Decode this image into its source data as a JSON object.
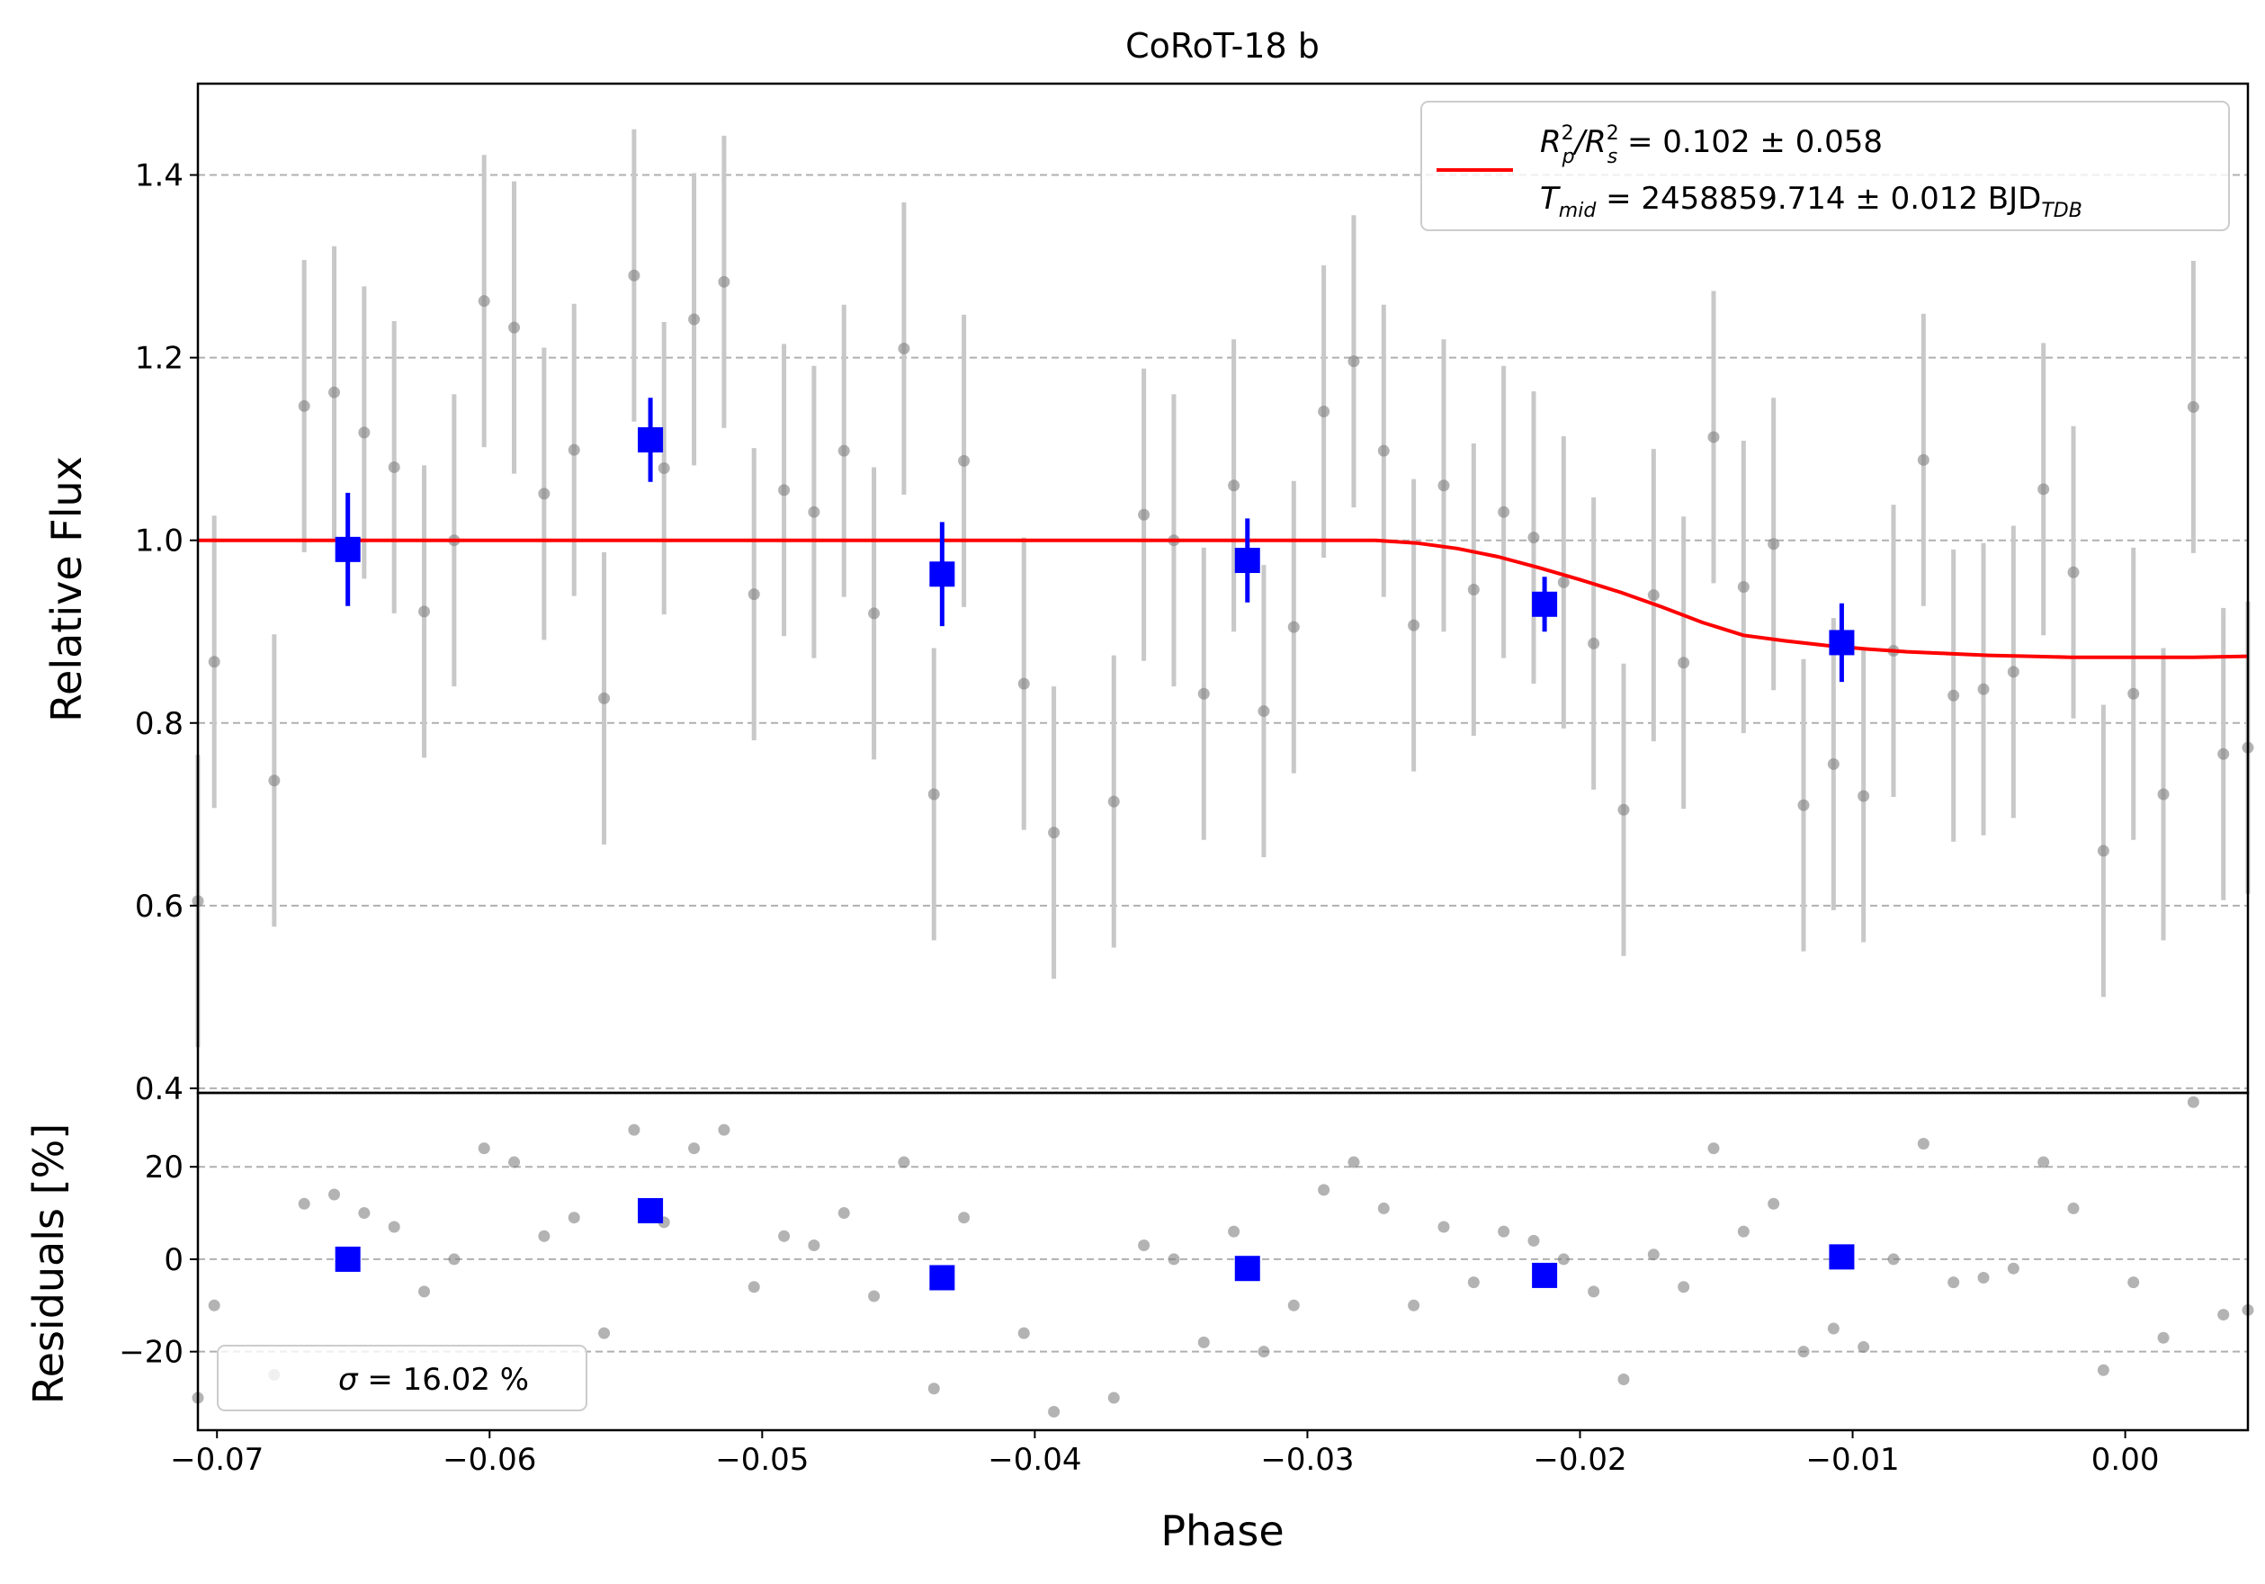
{
  "chart_data": [
    {
      "panel": "main",
      "type": "scatter",
      "title": "CoRoT-18 b",
      "xlabel": "",
      "ylabel": "Relative Flux",
      "xlim": [
        -0.0707,
        0.0045
      ],
      "ylim": [
        0.395,
        1.5
      ],
      "grid": "y-dashed",
      "yticks": [
        0.4,
        0.6,
        0.8,
        1.0,
        1.2,
        1.4
      ],
      "ytick_labels": [
        "0.4",
        "0.6",
        "0.8",
        "1.0",
        "1.2",
        "1.4"
      ],
      "legend": {
        "placement": "top-right",
        "line1": {
          "lhs": "R",
          "sub1": "p",
          "sup1": "2",
          "slash": "/R",
          "sub2": "s",
          "sup2": "2",
          "rest": " = 0.102 ± 0.058"
        },
        "line2": {
          "lhs": "T",
          "sub": "mid",
          "rest": " = 2458859.714 ± 0.012 BJD",
          "sub_end": "TDB"
        }
      },
      "colors": {
        "data": "#808080",
        "errorbar": "#c8c8c8",
        "binned": "#0000ff",
        "model": "#ff0000",
        "grid": "#b0b0b0"
      },
      "series": [
        {
          "role": "data",
          "x": [
            -0.0707,
            -0.0701,
            -0.0679,
            -0.0668,
            -0.0657,
            -0.0646,
            -0.0635,
            -0.0624,
            -0.0613,
            -0.0602,
            -0.0591,
            -0.058,
            -0.0569,
            -0.0558,
            -0.0547,
            -0.0536,
            -0.0525,
            -0.0514,
            -0.0503,
            -0.0492,
            -0.0481,
            -0.047,
            -0.0459,
            -0.0448,
            -0.0437,
            -0.0426,
            -0.0404,
            -0.0393,
            -0.0371,
            -0.036,
            -0.0349,
            -0.0338,
            -0.0327,
            -0.0316,
            -0.0305,
            -0.0294,
            -0.0283,
            -0.0272,
            -0.0261,
            -0.025,
            -0.0239,
            -0.0228,
            -0.0217,
            -0.0206,
            -0.0195,
            -0.0184,
            -0.0173,
            -0.0162,
            -0.0151,
            -0.014,
            -0.0129,
            -0.0118,
            -0.0107,
            -0.0096,
            -0.0085,
            -0.0074,
            -0.0063,
            -0.0052,
            -0.0041,
            -0.003,
            -0.0019,
            -0.0008,
            0.0003,
            0.0014,
            0.0025,
            0.0036,
            0.0045
          ],
          "y": [
            0.605,
            0.867,
            0.737,
            1.147,
            1.162,
            1.118,
            1.08,
            0.922,
            1.0,
            1.262,
            1.233,
            1.051,
            1.099,
            0.827,
            1.29,
            1.079,
            1.242,
            1.283,
            0.941,
            1.055,
            1.031,
            1.098,
            0.92,
            1.21,
            0.722,
            1.087,
            0.843,
            0.68,
            0.714,
            1.028,
            1.0,
            0.832,
            1.06,
            0.813,
            0.905,
            1.141,
            1.196,
            1.098,
            0.907,
            1.06,
            0.946,
            1.031,
            1.003,
            0.954,
            0.887,
            0.705,
            0.94,
            0.866,
            1.113,
            0.949,
            0.996,
            0.71,
            0.755,
            0.72,
            0.879,
            1.088,
            0.83,
            0.837,
            0.856,
            1.056,
            0.965,
            0.66,
            0.832,
            0.722,
            1.146,
            0.766,
            0.773
          ],
          "err": 0.16
        },
        {
          "role": "binned",
          "x": [
            -0.0652,
            -0.0541,
            -0.0434,
            -0.0322,
            -0.0213,
            -0.0104
          ],
          "y": [
            0.99,
            1.11,
            0.963,
            0.978,
            0.93,
            0.888
          ],
          "err": [
            0.062,
            0.046,
            0.057,
            0.046,
            0.03,
            0.043
          ]
        },
        {
          "role": "model",
          "name": "",
          "x": [
            -0.0707,
            -0.03,
            -0.0275,
            -0.026,
            -0.0245,
            -0.023,
            -0.0215,
            -0.02,
            -0.0185,
            -0.017,
            -0.0155,
            -0.014,
            -0.0125,
            -0.011,
            -0.0095,
            -0.008,
            -0.0065,
            -0.005,
            -0.0035,
            -0.002,
            -0.0005,
            0.001,
            0.0025,
            0.0045
          ],
          "y": [
            1.0,
            1.0,
            1.0,
            0.997,
            0.991,
            0.982,
            0.97,
            0.957,
            0.943,
            0.927,
            0.91,
            0.896,
            0.89,
            0.885,
            0.881,
            0.878,
            0.876,
            0.874,
            0.873,
            0.872,
            0.872,
            0.872,
            0.872,
            0.873
          ]
        }
      ]
    },
    {
      "panel": "residuals",
      "type": "scatter",
      "xlabel": "Phase",
      "ylabel": "Residuals [%]",
      "xlim": [
        -0.0707,
        0.0045
      ],
      "ylim": [
        -37,
        36
      ],
      "grid": "y-dashed",
      "yticks": [
        -20,
        0,
        20
      ],
      "ytick_labels": [
        "−20",
        "0",
        "20"
      ],
      "xticks": [
        -0.07,
        -0.06,
        -0.05,
        -0.04,
        -0.03,
        -0.02,
        -0.01,
        0.0
      ],
      "xtick_labels": [
        "−0.07",
        "−0.06",
        "−0.05",
        "−0.04",
        "−0.03",
        "−0.02",
        "−0.01",
        "0.00"
      ],
      "legend": {
        "placement": "bottom-left",
        "sigma_symbol": "σ",
        "text": " = 16.02 %"
      },
      "series": [
        {
          "role": "data",
          "x": [
            -0.0707,
            -0.0701,
            -0.0679,
            -0.0668,
            -0.0657,
            -0.0646,
            -0.0635,
            -0.0624,
            -0.0613,
            -0.0602,
            -0.0591,
            -0.058,
            -0.0569,
            -0.0558,
            -0.0547,
            -0.0536,
            -0.0525,
            -0.0514,
            -0.0503,
            -0.0492,
            -0.0481,
            -0.047,
            -0.0459,
            -0.0448,
            -0.0437,
            -0.0426,
            -0.0404,
            -0.0393,
            -0.0371,
            -0.036,
            -0.0349,
            -0.0338,
            -0.0327,
            -0.0316,
            -0.0305,
            -0.0294,
            -0.0283,
            -0.0272,
            -0.0261,
            -0.025,
            -0.0239,
            -0.0228,
            -0.0217,
            -0.0206,
            -0.0195,
            -0.0184,
            -0.0173,
            -0.0162,
            -0.0151,
            -0.014,
            -0.0129,
            -0.0118,
            -0.0107,
            -0.0096,
            -0.0085,
            -0.0074,
            -0.0063,
            -0.0052,
            -0.0041,
            -0.003,
            -0.0019,
            -0.0008,
            0.0003,
            0.0014,
            0.0025,
            0.0036,
            0.0045
          ],
          "y": [
            -30,
            -10,
            -25,
            12,
            14,
            10,
            7,
            -7,
            0,
            24,
            21,
            5,
            9,
            -16,
            28,
            8,
            24,
            28,
            -6,
            5,
            3,
            10,
            -8,
            21,
            -28,
            9,
            -16,
            -33,
            -30,
            3,
            0,
            -18,
            6,
            -20,
            -10,
            15,
            21,
            11,
            -10,
            7,
            -5,
            6,
            4,
            0,
            -7,
            -26,
            1,
            -6,
            24,
            6,
            12,
            -20,
            -15,
            -19,
            0,
            25,
            -5,
            -4,
            -2,
            21,
            11,
            -24,
            -5,
            -17,
            34,
            -12,
            -11
          ]
        },
        {
          "role": "binned",
          "x": [
            -0.0652,
            -0.0541,
            -0.0434,
            -0.0322,
            -0.0213,
            -0.0104
          ],
          "y": [
            0,
            10.5,
            -4,
            -2,
            -3.5,
            0.5
          ]
        }
      ]
    }
  ]
}
